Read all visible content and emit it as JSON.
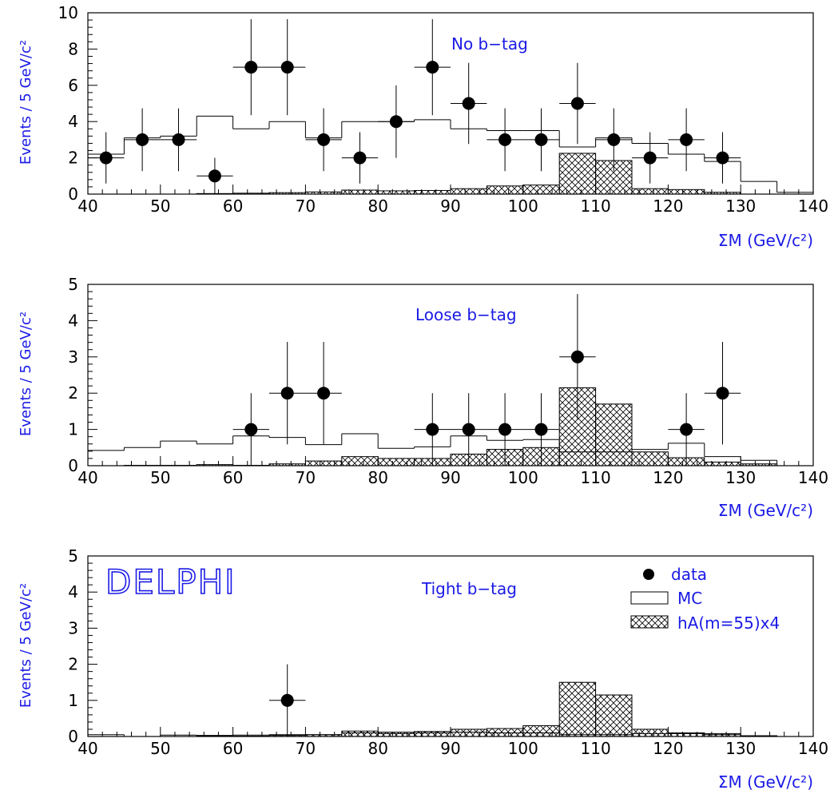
{
  "brand": "DELPHI",
  "legend": [
    {
      "label": "data",
      "kind": "marker"
    },
    {
      "label": "MC",
      "kind": "open"
    },
    {
      "label": "hA(m=55)x4",
      "kind": "hatched"
    }
  ],
  "colors": {
    "text": "#1a1ae6",
    "axis": "#000000",
    "data": "#000000"
  },
  "chart_data": [
    {
      "type": "bar",
      "title": "No b−tag",
      "xlabel": "ΣM (GeV/c²)",
      "ylabel": "Events / 5 GeV/c²",
      "xlim": [
        40,
        140
      ],
      "ylim": [
        0,
        10
      ],
      "xticks": [
        40,
        50,
        60,
        70,
        80,
        90,
        100,
        110,
        120,
        130,
        140
      ],
      "yticks": [
        0,
        2,
        4,
        6,
        8,
        10
      ],
      "bin_edges": [
        40,
        45,
        50,
        55,
        60,
        65,
        70,
        75,
        80,
        85,
        90,
        95,
        100,
        105,
        110,
        115,
        120,
        125,
        130,
        135,
        140
      ],
      "series": [
        {
          "name": "MC",
          "values": [
            2.2,
            3.1,
            3.2,
            4.3,
            3.6,
            4.0,
            3.1,
            4.0,
            4.0,
            4.1,
            3.6,
            3.5,
            3.5,
            2.6,
            3.1,
            2.8,
            2.2,
            1.8,
            0.7,
            0.1
          ]
        },
        {
          "name": "hA(m=55)x4",
          "values": [
            0.0,
            0.0,
            0.0,
            0.03,
            0.05,
            0.08,
            0.12,
            0.22,
            0.18,
            0.2,
            0.3,
            0.45,
            0.5,
            2.25,
            1.85,
            0.3,
            0.25,
            0.1,
            0.0,
            0.0
          ]
        },
        {
          "name": "data",
          "x": [
            42.5,
            47.5,
            52.5,
            57.5,
            62.5,
            67.5,
            72.5,
            77.5,
            82.5,
            87.5,
            92.5,
            97.5,
            102.5,
            107.5,
            112.5,
            117.5,
            122.5,
            127.5
          ],
          "values": [
            2,
            3,
            3,
            1,
            7,
            7,
            3,
            2,
            4,
            7,
            5,
            3,
            3,
            5,
            3,
            2,
            3,
            2
          ]
        }
      ]
    },
    {
      "type": "bar",
      "title": "Loose b−tag",
      "xlabel": "ΣM (GeV/c²)",
      "ylabel": "Events / 5 GeV/c²",
      "xlim": [
        40,
        140
      ],
      "ylim": [
        0,
        5
      ],
      "xticks": [
        40,
        50,
        60,
        70,
        80,
        90,
        100,
        110,
        120,
        130,
        140
      ],
      "yticks": [
        0,
        1,
        2,
        3,
        4,
        5
      ],
      "bin_edges": [
        40,
        45,
        50,
        55,
        60,
        65,
        70,
        75,
        80,
        85,
        90,
        95,
        100,
        105,
        110,
        115,
        120,
        125,
        130,
        135,
        140
      ],
      "series": [
        {
          "name": "MC",
          "values": [
            0.42,
            0.5,
            0.68,
            0.6,
            0.82,
            0.78,
            0.58,
            0.88,
            0.48,
            0.52,
            0.82,
            0.7,
            0.72,
            0.38,
            0.38,
            0.45,
            0.62,
            0.25,
            0.15,
            0.0
          ]
        },
        {
          "name": "hA(m=55)x4",
          "values": [
            0.0,
            0.01,
            0.01,
            0.03,
            0.01,
            0.05,
            0.13,
            0.25,
            0.2,
            0.2,
            0.32,
            0.45,
            0.5,
            2.15,
            1.7,
            0.38,
            0.22,
            0.1,
            0.05,
            0.0
          ]
        },
        {
          "name": "data",
          "x": [
            62.5,
            67.5,
            72.5,
            87.5,
            92.5,
            97.5,
            102.5,
            107.5,
            122.5,
            127.5
          ],
          "values": [
            1,
            2,
            2,
            1,
            1,
            1,
            1,
            3,
            1,
            2
          ]
        }
      ]
    },
    {
      "type": "bar",
      "title": "Tight b−tag",
      "xlabel": "ΣM (GeV/c²)",
      "ylabel": "Events / 5 GeV/c²",
      "xlim": [
        40,
        140
      ],
      "ylim": [
        0,
        5
      ],
      "xticks": [
        40,
        50,
        60,
        70,
        80,
        90,
        100,
        110,
        120,
        130,
        140
      ],
      "yticks": [
        0,
        1,
        2,
        3,
        4,
        5
      ],
      "bin_edges": [
        40,
        45,
        50,
        55,
        60,
        65,
        70,
        75,
        80,
        85,
        90,
        95,
        100,
        105,
        110,
        115,
        120,
        125,
        130,
        135,
        140
      ],
      "series": [
        {
          "name": "MC",
          "values": [
            0.05,
            0.0,
            0.04,
            0.03,
            0.04,
            0.05,
            0.05,
            0.1,
            0.08,
            0.1,
            0.12,
            0.1,
            0.1,
            0.05,
            0.05,
            0.08,
            0.08,
            0.05,
            0.02,
            0.0
          ]
        },
        {
          "name": "hA(m=55)x4",
          "values": [
            0.0,
            0.0,
            0.0,
            0.02,
            0.01,
            0.03,
            0.05,
            0.15,
            0.12,
            0.14,
            0.2,
            0.22,
            0.3,
            1.5,
            1.15,
            0.2,
            0.1,
            0.08,
            0.02,
            0.0
          ]
        },
        {
          "name": "data",
          "x": [
            67.5
          ],
          "values": [
            1
          ]
        }
      ]
    }
  ]
}
